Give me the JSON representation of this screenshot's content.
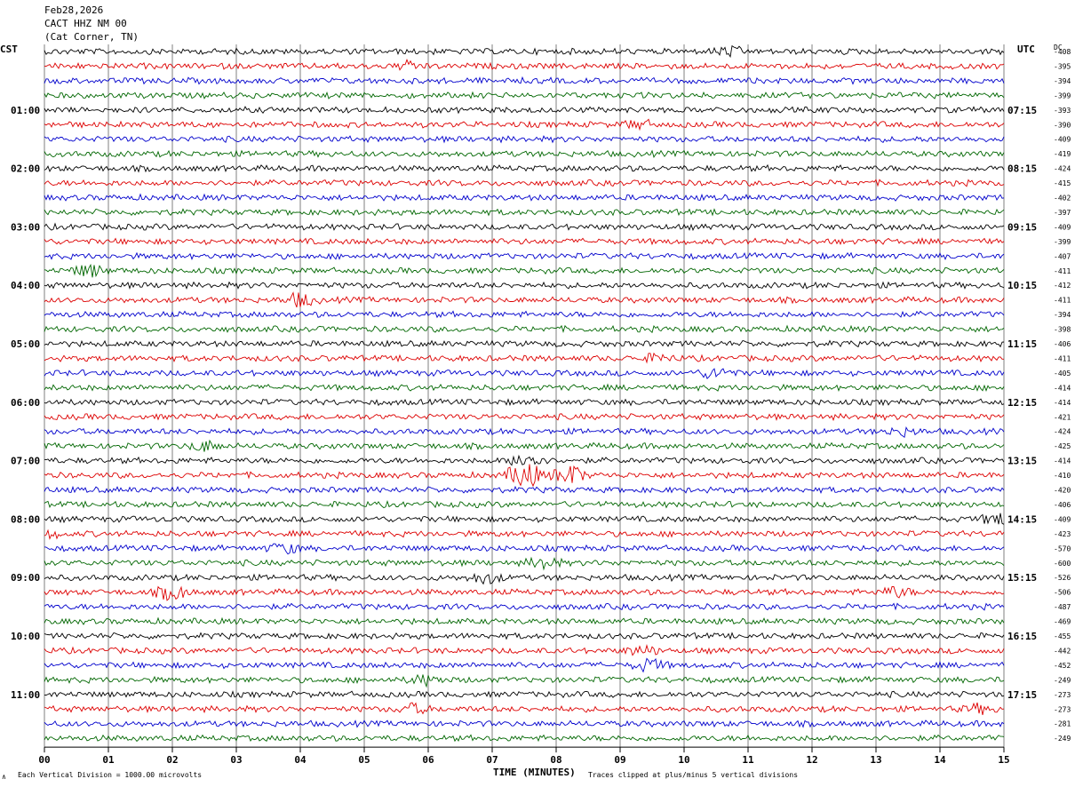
{
  "header": {
    "date": "Feb28,2026",
    "station": "CACT HHZ NM 00",
    "location": "(Cat Corner, TN)"
  },
  "axes": {
    "left_label": "CST",
    "right_label": "UTC",
    "dc_label": "DC"
  },
  "footer": {
    "x_title": "TIME (MINUTES)",
    "left_note": "Each Vertical Division = 1000.00 microvolts",
    "right_note": "Traces clipped at plus/minus 5 vertical divisions",
    "mark": "∧"
  },
  "colors": {
    "trace_cycle": [
      "#000000",
      "#dd0000",
      "#0000cc",
      "#006600"
    ],
    "grid": "#000000",
    "background": "#ffffff"
  },
  "chart_data": {
    "type": "line",
    "title": "CACT HHZ NM 00",
    "xlabel": "TIME (MINUTES)",
    "ylabel": "",
    "xlim": [
      0,
      15
    ],
    "x_ticks": [
      "00",
      "01",
      "02",
      "03",
      "04",
      "05",
      "06",
      "07",
      "08",
      "09",
      "10",
      "11",
      "12",
      "13",
      "14",
      "15"
    ],
    "trace_minutes": 15,
    "left_time_labels": [
      "01:00",
      "02:00",
      "03:00",
      "04:00",
      "05:00",
      "06:00",
      "07:00",
      "08:00",
      "09:00",
      "10:00",
      "11:00"
    ],
    "right_time_labels": [
      "07:15",
      "08:15",
      "09:15",
      "10:15",
      "11:15",
      "12:15",
      "13:15",
      "14:15",
      "15:15",
      "16:15",
      "17:15"
    ],
    "dc_offsets": [
      -408,
      -395,
      -394,
      -399,
      -393,
      -390,
      -409,
      -419,
      -424,
      -415,
      -402,
      -397,
      -409,
      -399,
      -407,
      -411,
      -412,
      -411,
      -394,
      -398,
      -406,
      -411,
      -405,
      -414,
      -414,
      -421,
      -424,
      -425,
      -414,
      -410,
      -420,
      -406,
      -409,
      -423,
      -570,
      -600,
      -526,
      -506,
      -487,
      -469,
      -455,
      -442,
      -452,
      -249,
      -273,
      -273,
      -281,
      -249
    ],
    "events": [
      {
        "trace": 0,
        "minute": 10.7,
        "amp": 1.4
      },
      {
        "trace": 1,
        "minute": 5.7,
        "amp": 1.2
      },
      {
        "trace": 5,
        "minute": 9.3,
        "amp": 1.3
      },
      {
        "trace": 15,
        "minute": 0.7,
        "amp": 2.0
      },
      {
        "trace": 17,
        "minute": 4.0,
        "amp": 2.2
      },
      {
        "trace": 21,
        "minute": 9.6,
        "amp": 1.3
      },
      {
        "trace": 22,
        "minute": 10.5,
        "amp": 1.8
      },
      {
        "trace": 26,
        "minute": 13.4,
        "amp": 1.2
      },
      {
        "trace": 27,
        "minute": 2.5,
        "amp": 1.6
      },
      {
        "trace": 28,
        "minute": 7.55,
        "amp": 3.0
      },
      {
        "trace": 29,
        "minute": 7.5,
        "amp": 5.0
      },
      {
        "trace": 29,
        "minute": 8.2,
        "amp": 3.5
      },
      {
        "trace": 32,
        "minute": 14.9,
        "amp": 1.8
      },
      {
        "trace": 33,
        "minute": 0.0,
        "amp": 1.5
      },
      {
        "trace": 34,
        "minute": 3.75,
        "amp": 1.6
      },
      {
        "trace": 35,
        "minute": 7.8,
        "amp": 2.0
      },
      {
        "trace": 36,
        "minute": 6.9,
        "amp": 1.8
      },
      {
        "trace": 37,
        "minute": 2.0,
        "amp": 2.5
      },
      {
        "trace": 37,
        "minute": 13.3,
        "amp": 1.6
      },
      {
        "trace": 41,
        "minute": 9.35,
        "amp": 1.5
      },
      {
        "trace": 42,
        "minute": 9.45,
        "amp": 2.0
      },
      {
        "trace": 43,
        "minute": 5.95,
        "amp": 1.6
      },
      {
        "trace": 45,
        "minute": 5.75,
        "amp": 1.5
      },
      {
        "trace": 45,
        "minute": 14.6,
        "amp": 1.3
      }
    ]
  }
}
